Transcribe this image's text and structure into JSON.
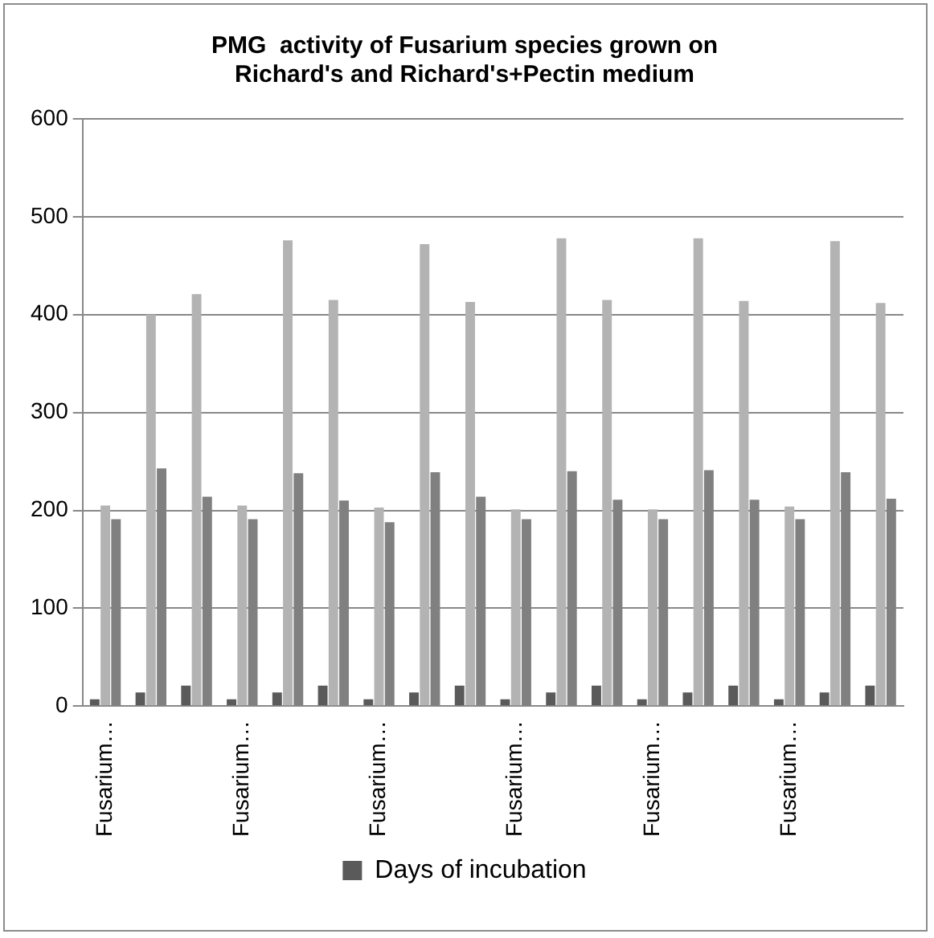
{
  "chart_data": {
    "type": "bar",
    "title": "PMG  activity of Fusarium species grown on\nRichard's and Richard's+Pectin medium",
    "categories": [
      "Fusarium…",
      null,
      null,
      "Fusarium…",
      null,
      null,
      "Fusarium…",
      null,
      null,
      "Fusarium…",
      null,
      null,
      "Fusarium…",
      null,
      null,
      "Fusarium…",
      null,
      null
    ],
    "series": [
      {
        "name": "Days of incubation",
        "color": "#5a5a5a",
        "values": [
          7,
          14,
          21,
          7,
          14,
          21,
          7,
          14,
          21,
          7,
          14,
          21,
          7,
          14,
          21,
          7,
          14,
          21
        ]
      },
      {
        "color": "#b3b3b3",
        "values": [
          205,
          400,
          421,
          205,
          476,
          415,
          203,
          472,
          413,
          201,
          478,
          415,
          201,
          478,
          414,
          204,
          475,
          412
        ]
      },
      {
        "color": "#808080",
        "values": [
          191,
          243,
          214,
          191,
          238,
          210,
          188,
          239,
          214,
          191,
          240,
          211,
          191,
          241,
          211,
          191,
          239,
          212
        ]
      }
    ],
    "ylim": [
      0,
      600
    ],
    "yticks": [
      0,
      100,
      200,
      300,
      400,
      500,
      600
    ],
    "grid": "y",
    "legend": "bottom"
  }
}
